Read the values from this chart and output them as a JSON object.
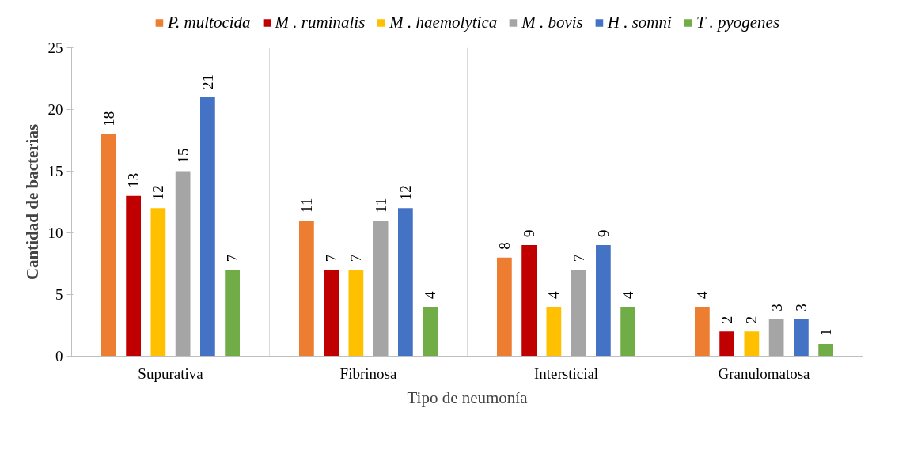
{
  "chart_data": {
    "type": "bar",
    "xlabel": "Tipo de neumonía",
    "ylabel": "Cantidad de bacterias",
    "categories": [
      "Supurativa",
      "Fibrinosa",
      "Intersticial",
      "Granulomatosa"
    ],
    "series": [
      {
        "name": "P. multocida",
        "color": "#ed7d31",
        "values": [
          18,
          11,
          8,
          4
        ]
      },
      {
        "name": "M . ruminalis",
        "color": "#c00000",
        "values": [
          13,
          7,
          9,
          2
        ]
      },
      {
        "name": "M . haemolytica",
        "color": "#ffc000",
        "values": [
          12,
          7,
          4,
          2
        ]
      },
      {
        "name": "M . bovis",
        "color": "#a5a5a5",
        "values": [
          15,
          11,
          7,
          3
        ]
      },
      {
        "name": "H . somni",
        "color": "#4472c4",
        "values": [
          21,
          12,
          9,
          3
        ]
      },
      {
        "name": "T . pyogenes",
        "color": "#70ad47",
        "values": [
          7,
          4,
          4,
          1
        ]
      }
    ],
    "ylim": [
      0,
      25
    ],
    "yticks": [
      0,
      5,
      10,
      15,
      20,
      25
    ],
    "grid": "x",
    "legend": "top",
    "data_labels": true
  }
}
